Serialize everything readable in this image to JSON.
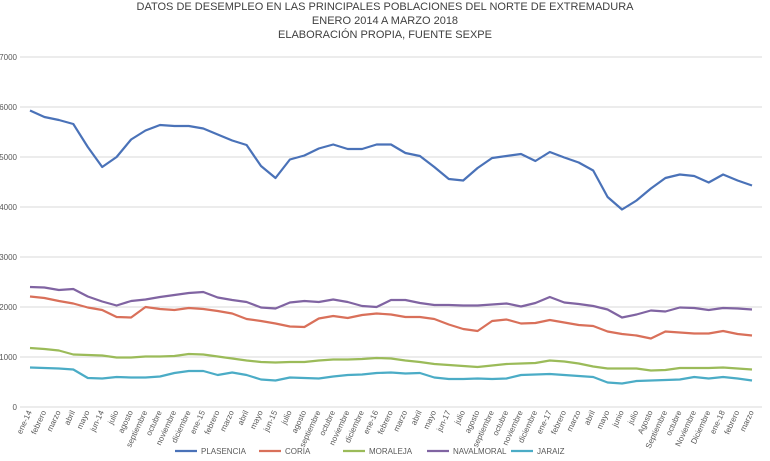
{
  "chart_data": {
    "type": "line",
    "title": "DATOS DE DESEMPLEO EN LAS PRINCIPALES POBLACIONES DEL NORTE DE EXTREMADURA",
    "subtitle": [
      "ENERO 2014 A  MARZO 2018",
      "ELABORACIÓN PROPIA, FUENTE SEXPE"
    ],
    "categories": [
      "ene-14",
      "febrero",
      "marzo",
      "abril",
      "mayo",
      "jun-14",
      "julio",
      "agosto",
      "septiembre",
      "octubre",
      "noviembre",
      "diciembre",
      "ene-15",
      "febrero",
      "marzo",
      "abril",
      "mayo",
      "jun-15",
      "julio",
      "agosto",
      "septiembre",
      "octubre",
      "noviembre",
      "diciembre",
      "ene-16",
      "febrero",
      "marzo",
      "abril",
      "mayo",
      "jun-17",
      "julio",
      "agosto",
      "septiembre",
      "octubre",
      "noviembre",
      "diciembre",
      "ene-17",
      "febrero",
      "marzo",
      "abril",
      "mayo",
      "junio",
      "julio",
      "Agosto",
      "Septiembre",
      "octubre",
      "Noviembre",
      "Diciembre",
      "ene-18",
      "febrero",
      "marzo"
    ],
    "series": [
      {
        "name": "PLASENCIA",
        "color": "#4a72b8",
        "values": [
          5930,
          5800,
          5740,
          5660,
          5200,
          4800,
          5000,
          5350,
          5530,
          5640,
          5620,
          5620,
          5570,
          5450,
          5330,
          5240,
          4820,
          4580,
          4950,
          5030,
          5170,
          5250,
          5160,
          5160,
          5250,
          5250,
          5080,
          5020,
          4800,
          4560,
          4530,
          4780,
          4980,
          5020,
          5060,
          4920,
          5100,
          4990,
          4890,
          4730,
          4200,
          3950,
          4130,
          4370,
          4580,
          4650,
          4620,
          4490,
          4650,
          4530,
          4430
        ]
      },
      {
        "name": "CORIA",
        "color": "#d9705a",
        "values": [
          2210,
          2180,
          2120,
          2070,
          1990,
          1940,
          1800,
          1790,
          2000,
          1960,
          1940,
          1980,
          1960,
          1920,
          1870,
          1760,
          1720,
          1670,
          1610,
          1600,
          1770,
          1820,
          1780,
          1840,
          1870,
          1850,
          1800,
          1800,
          1760,
          1650,
          1560,
          1520,
          1720,
          1750,
          1670,
          1680,
          1740,
          1690,
          1640,
          1620,
          1510,
          1460,
          1430,
          1370,
          1510,
          1490,
          1470,
          1470,
          1520,
          1460,
          1430
        ]
      },
      {
        "name": "MORALEJA",
        "color": "#9bbb59",
        "values": [
          1180,
          1160,
          1130,
          1050,
          1040,
          1030,
          990,
          990,
          1010,
          1010,
          1020,
          1060,
          1050,
          1010,
          970,
          930,
          900,
          890,
          900,
          900,
          930,
          950,
          950,
          960,
          980,
          970,
          930,
          900,
          860,
          840,
          820,
          800,
          830,
          860,
          870,
          880,
          930,
          910,
          870,
          810,
          770,
          770,
          770,
          730,
          740,
          780,
          780,
          780,
          790,
          770,
          750
        ]
      },
      {
        "name": "NAVALMORAL",
        "color": "#8064a2",
        "values": [
          2400,
          2390,
          2340,
          2360,
          2210,
          2110,
          2030,
          2120,
          2150,
          2200,
          2240,
          2280,
          2300,
          2190,
          2140,
          2100,
          1990,
          1970,
          2090,
          2120,
          2100,
          2150,
          2100,
          2020,
          2000,
          2140,
          2140,
          2080,
          2040,
          2040,
          2030,
          2030,
          2050,
          2070,
          2010,
          2080,
          2200,
          2090,
          2060,
          2020,
          1950,
          1790,
          1850,
          1930,
          1910,
          1990,
          1980,
          1940,
          1980,
          1970,
          1950
        ]
      },
      {
        "name": "JARAIZ",
        "color": "#4bacc6",
        "values": [
          790,
          780,
          770,
          750,
          580,
          570,
          600,
          590,
          590,
          610,
          680,
          720,
          720,
          640,
          690,
          640,
          550,
          530,
          590,
          580,
          570,
          610,
          640,
          650,
          680,
          690,
          670,
          680,
          590,
          560,
          560,
          570,
          560,
          570,
          640,
          650,
          660,
          640,
          620,
          600,
          490,
          470,
          520,
          530,
          540,
          550,
          600,
          570,
          600,
          570,
          530
        ]
      }
    ],
    "ylim": [
      0,
      7000
    ],
    "yticks": [
      0,
      1000,
      2000,
      3000,
      4000,
      5000,
      6000,
      7000
    ],
    "grid": true,
    "legend": "bottom"
  }
}
